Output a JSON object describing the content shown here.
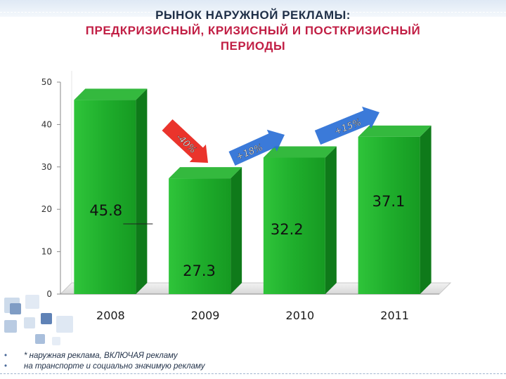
{
  "header": {
    "line1": "РЫНОК НАРУЖНОЙ РЕКЛАМЫ:",
    "line2": "ПРЕДКРИЗИСНЫЙ, КРИЗИСНЫЙ И ПОСТКРИЗИСНЫЙ",
    "line3": "ПЕРИОДЫ"
  },
  "chart_data": {
    "type": "bar",
    "categories": [
      "2008",
      "2009",
      "2010",
      "2011"
    ],
    "values": [
      45.8,
      27.3,
      32.2,
      37.1
    ],
    "data_labels": [
      "45.8",
      "27.3",
      "32.2",
      "37.1"
    ],
    "ylim": [
      0,
      50
    ],
    "yticks": [
      0,
      10,
      20,
      30,
      40,
      50
    ],
    "ytick_labels": [
      "0",
      "10",
      "20",
      "30",
      "40",
      "50"
    ],
    "grid": false,
    "legend": "none",
    "bar_color": "#1fae2c",
    "annotations": [
      {
        "text": "-40%",
        "from": "2008",
        "to": "2009",
        "color": "#e8231a"
      },
      {
        "text": "+18%",
        "from": "2009",
        "to": "2010",
        "color": "#2a6fd6"
      },
      {
        "text": "+15%",
        "from": "2010",
        "to": "2011",
        "color": "#2a6fd6"
      }
    ]
  },
  "footnote": {
    "bullet": "•",
    "line1": "* наружная реклама, ВКЛЮЧАЯ рекламу",
    "line2": "на транспорте и социально значимую рекламу"
  }
}
